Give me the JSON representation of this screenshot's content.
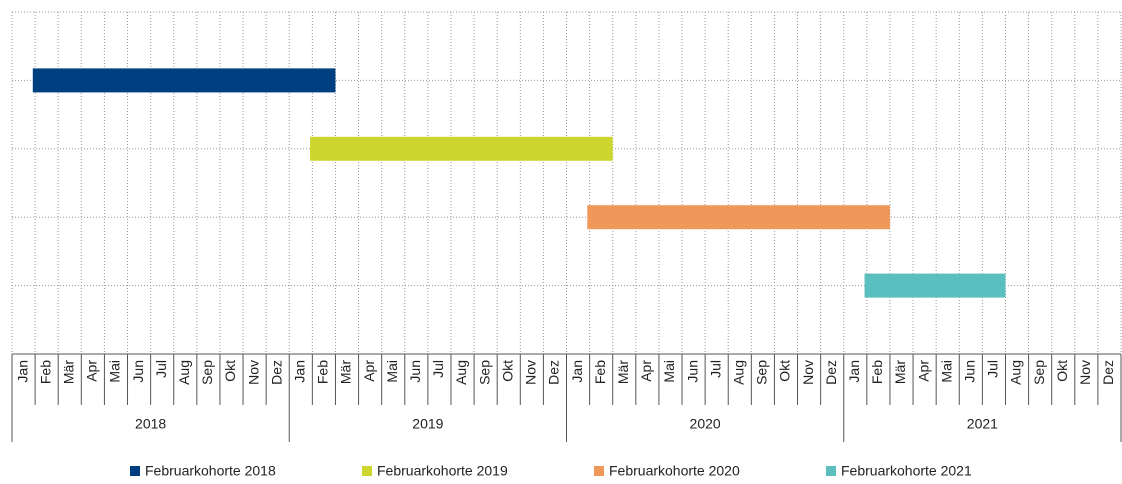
{
  "chart_data": {
    "type": "gantt",
    "months": [
      "Jan",
      "Feb",
      "Mär",
      "Apr",
      "Mai",
      "Jun",
      "Jul",
      "Aug",
      "Sep",
      "Okt",
      "Nov",
      "Dez"
    ],
    "years": [
      "2018",
      "2019",
      "2020",
      "2021"
    ],
    "grid": true,
    "series": [
      {
        "name": "Februarkohorte 2018",
        "color": "#003f7f",
        "start": "2018-02",
        "end": "2019-02"
      },
      {
        "name": "Februarkohorte 2019",
        "color": "#cdd62e",
        "start": "2019-02",
        "end": "2020-02"
      },
      {
        "name": "Februarkohorte 2020",
        "color": "#f0975a",
        "start": "2020-02",
        "end": "2021-02"
      },
      {
        "name": "Februarkohorte 2021",
        "color": "#5bbfbf",
        "start": "2021-02",
        "end": "2021-07"
      }
    ]
  }
}
